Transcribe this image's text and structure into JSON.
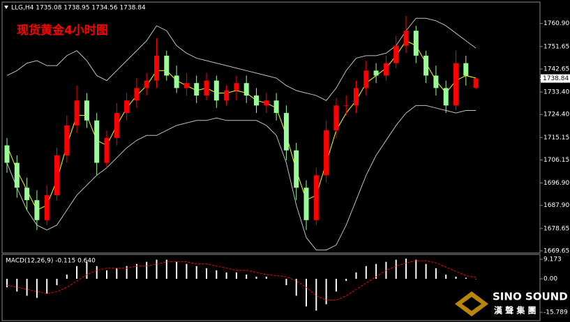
{
  "header": {
    "symbol_line": "LLG,H4  1735.08 1738.95 1734.56 1738.84"
  },
  "logo": {
    "name": "SINO SOUND",
    "subtitle": "漢 聲 集 團"
  },
  "chart_data": [
    {
      "type": "candlestick",
      "title": "现货黄金4小时图",
      "ylim": [
        1668.8,
        1769.5
      ],
      "yticks": [
        {
          "value": 1760.9,
          "label": "1760.90"
        },
        {
          "value": 1751.65,
          "label": "1751.65"
        },
        {
          "value": 1742.65,
          "label": "1742.65"
        },
        {
          "value": 1733.4,
          "label": "1733.40"
        },
        {
          "value": 1724.4,
          "label": "1724.40"
        },
        {
          "value": 1715.15,
          "label": "1715.15"
        },
        {
          "value": 1706.15,
          "label": "1706.15"
        },
        {
          "value": 1696.9,
          "label": "1696.90"
        },
        {
          "value": 1687.9,
          "label": "1687.90"
        },
        {
          "value": 1678.65,
          "label": "1678.65"
        },
        {
          "value": 1669.65,
          "label": "1669.65"
        }
      ],
      "current_price": {
        "value": 1738.84,
        "label": "1738.84"
      },
      "up_color": "#ff0000",
      "down_color": "#98fb98",
      "open": [
        1712,
        1705,
        1695,
        1690,
        1682,
        1692,
        1708,
        1720,
        1730,
        1722,
        1705,
        1715,
        1725,
        1730,
        1735,
        1738,
        1748,
        1740,
        1735,
        1737,
        1732,
        1738,
        1730,
        1734,
        1737,
        1732,
        1728,
        1730,
        1725,
        1710,
        1695,
        1682,
        1700,
        1718,
        1728,
        1728,
        1735,
        1742,
        1740,
        1745,
        1752,
        1758,
        1748,
        1740,
        1735,
        1728,
        1745,
        1735.08
      ],
      "high": [
        1715,
        1708,
        1699,
        1694,
        1696,
        1711,
        1724,
        1736,
        1733,
        1725,
        1718,
        1729,
        1733,
        1739,
        1741,
        1755,
        1750,
        1744,
        1741,
        1740,
        1741,
        1740,
        1736,
        1740,
        1740,
        1735,
        1733,
        1733,
        1728,
        1713,
        1698,
        1703,
        1722,
        1731,
        1732,
        1738,
        1746,
        1745,
        1748,
        1756,
        1764,
        1760,
        1750,
        1744,
        1738,
        1750,
        1748,
        1738.95
      ],
      "low": [
        1701,
        1691,
        1686,
        1678,
        1680,
        1690,
        1705,
        1717,
        1719,
        1700,
        1703,
        1712,
        1722,
        1727,
        1732,
        1735,
        1738,
        1733,
        1732,
        1729,
        1730,
        1727,
        1728,
        1730,
        1729,
        1725,
        1725,
        1722,
        1706,
        1690,
        1678,
        1680,
        1697,
        1715,
        1724,
        1725,
        1732,
        1737,
        1738,
        1743,
        1749,
        1745,
        1737,
        1732,
        1725,
        1726,
        1736,
        1734.56
      ],
      "close": [
        1705,
        1695,
        1690,
        1682,
        1692,
        1708,
        1720,
        1730,
        1722,
        1705,
        1715,
        1725,
        1730,
        1735,
        1738,
        1748,
        1740,
        1735,
        1737,
        1732,
        1738,
        1730,
        1734,
        1737,
        1732,
        1728,
        1730,
        1725,
        1710,
        1695,
        1682,
        1700,
        1718,
        1728,
        1728,
        1735,
        1742,
        1740,
        1745,
        1752,
        1758,
        1748,
        1740,
        1735,
        1728,
        1745,
        1740,
        1738.84
      ],
      "lines": [
        {
          "color": "#c0c0c0",
          "values": [
            1740,
            1742,
            1745,
            1746,
            1744,
            1744,
            1748,
            1750,
            1746,
            1740,
            1738,
            1742,
            1746,
            1750,
            1754,
            1760,
            1758,
            1752,
            1749,
            1747,
            1746,
            1745,
            1744,
            1743,
            1742,
            1741,
            1740,
            1739,
            1736,
            1734,
            1733,
            1732,
            1730,
            1735,
            1742,
            1747,
            1748,
            1748,
            1749,
            1752,
            1758,
            1763,
            1763,
            1762,
            1760,
            1757,
            1754,
            1751
          ]
        },
        {
          "color": "#c0c0c0",
          "values": [
            1705,
            1695,
            1686,
            1680,
            1678,
            1680,
            1686,
            1692,
            1696,
            1700,
            1703,
            1707,
            1711,
            1714,
            1716,
            1716,
            1718,
            1720,
            1721,
            1722,
            1722,
            1723,
            1722,
            1722,
            1722,
            1722,
            1720,
            1716,
            1705,
            1688,
            1675,
            1670,
            1670,
            1672,
            1680,
            1690,
            1700,
            1708,
            1714,
            1720,
            1725,
            1728,
            1728,
            1727,
            1726,
            1725,
            1726,
            1726
          ]
        },
        {
          "color": "#ffff00",
          "values": [
            1712,
            1702,
            1694,
            1686,
            1688,
            1698,
            1712,
            1724,
            1724,
            1714,
            1712,
            1720,
            1727,
            1732,
            1736,
            1742,
            1742,
            1738,
            1736,
            1734,
            1735,
            1733,
            1733,
            1734,
            1733,
            1730,
            1729,
            1727,
            1716,
            1702,
            1690,
            1692,
            1705,
            1718,
            1725,
            1730,
            1737,
            1740,
            1743,
            1748,
            1754,
            1752,
            1745,
            1738,
            1733,
            1738,
            1740,
            1739
          ]
        }
      ]
    },
    {
      "type": "macd",
      "title": "MACD(12,26,9) -0.115 0.640",
      "ylim": [
        -19.7,
        11.5
      ],
      "yticks": [
        9.173,
        {
          "value": 0,
          "label": "0.00"
        },
        -15.789
      ],
      "series": [
        {
          "color": "#ffffff",
          "values": [
            -4,
            -6,
            -8,
            -9,
            -7,
            -3,
            2,
            6,
            8,
            6,
            4,
            5,
            6,
            7,
            8,
            9,
            9,
            8,
            7,
            6,
            5,
            4,
            3,
            3,
            2,
            1,
            1,
            0,
            -3,
            -8,
            -13,
            -15,
            -12,
            -6,
            -1,
            3,
            6,
            7,
            8,
            9,
            9.5,
            9,
            7,
            5,
            2,
            1,
            0.5,
            -0.115
          ]
        },
        {
          "color": "#ff0000",
          "values": [
            -3,
            -4,
            -5,
            -6,
            -7,
            -6,
            -4,
            -1,
            2,
            4,
            5,
            5,
            5,
            6,
            6,
            7,
            8,
            8,
            8,
            7,
            7,
            6,
            5,
            4,
            4,
            3,
            2,
            1.5,
            1,
            -1,
            -4,
            -8,
            -10,
            -10,
            -8,
            -5,
            -2,
            1,
            4,
            6,
            7.5,
            8.5,
            8.5,
            7.5,
            5.5,
            3.5,
            1.5,
            0.64
          ]
        }
      ]
    }
  ]
}
